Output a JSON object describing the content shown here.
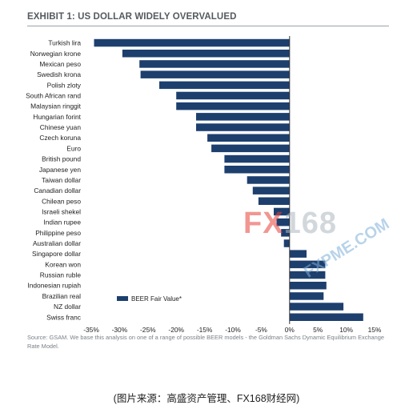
{
  "title": "EXHIBIT 1: US DOLLAR WIDELY OVERVALUED",
  "source": "Source: GSAM. We base this analysis on one of a range of possible BEER models - the Goldman Sachs Dynamic Equilibrium Exchange Rate Model.",
  "caption": "(图片来源：高盛资产管理、FX168财经网)",
  "watermark": {
    "fx": "FX",
    "num": "168",
    "site": "FXPME.COM"
  },
  "colors": {
    "bar": "#1d3f6e",
    "axis": "#333333",
    "text": "#222222"
  },
  "chart_data": {
    "type": "bar",
    "orientation": "horizontal",
    "title": "EXHIBIT 1: US DOLLAR WIDELY OVERVALUED",
    "categories": [
      "Turkish lira",
      "Norwegian krone",
      "Mexican peso",
      "Swedish krona",
      "Polish zloty",
      "South African rand",
      "Malaysian ringgit",
      "Hungarian forint",
      "Chinese yuan",
      "Czech koruna",
      "Euro",
      "British pound",
      "Japanese yen",
      "Taiwan dollar",
      "Canadian dollar",
      "Chilean peso",
      "Israeli shekel",
      "Indian rupee",
      "Philippine peso",
      "Australian dollar",
      "Singapore dollar",
      "Korean won",
      "Russian ruble",
      "Indonesian rupiah",
      "Brazilian real",
      "NZ dollar",
      "Swiss franc"
    ],
    "series": [
      {
        "name": "BEER Fair Value*",
        "values": [
          -34.5,
          -29.5,
          -26.5,
          -26.3,
          -23.0,
          -20.0,
          -20.0,
          -16.5,
          -16.5,
          -14.5,
          -13.8,
          -11.5,
          -11.5,
          -7.5,
          -6.5,
          -5.5,
          -2.8,
          -2.3,
          -1.5,
          -1.0,
          3.0,
          6.3,
          6.3,
          6.5,
          6.0,
          9.5,
          13.0
        ]
      }
    ],
    "xlim": [
      -35,
      15
    ],
    "xticks": [
      "-35%",
      "-30%",
      "-25%",
      "-20%",
      "-15%",
      "-10%",
      "-5%",
      "0%",
      "5%",
      "10%",
      "15%"
    ],
    "legend": "bottom-left",
    "grid": false
  }
}
